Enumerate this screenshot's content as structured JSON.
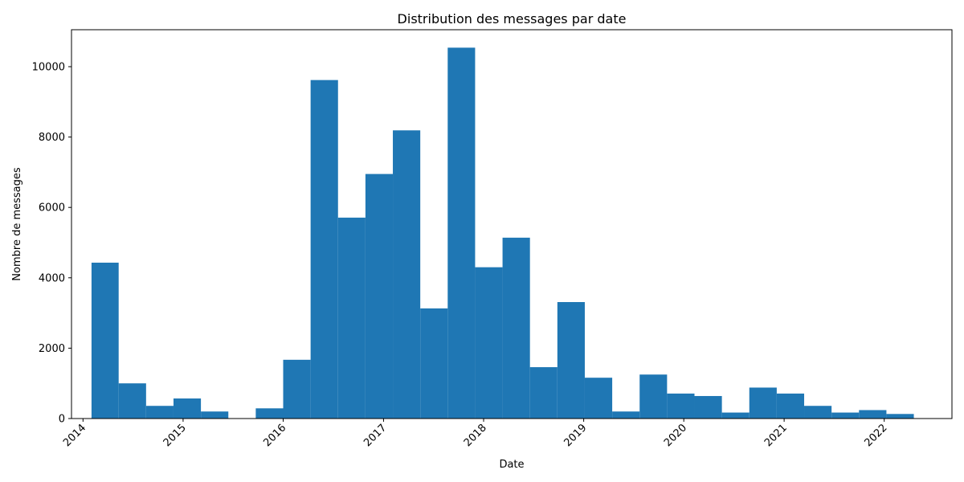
{
  "chart_data": {
    "type": "bar",
    "title": "Distribution des messages par date",
    "xlabel": "Date",
    "ylabel": "Nombre de messages",
    "x_ticks": [
      "2014",
      "2015",
      "2016",
      "2017",
      "2018",
      "2019",
      "2020",
      "2021",
      "2022"
    ],
    "y_ticks": [
      0,
      2000,
      4000,
      6000,
      8000,
      10000
    ],
    "xlim": [
      "2013-11-20",
      "2022-09-05"
    ],
    "ylim": [
      0,
      11050
    ],
    "bar_color": "#1f77b4",
    "bins": [
      {
        "start": "2014-02-01",
        "end": "2014-05-11",
        "value": 4430
      },
      {
        "start": "2014-05-11",
        "end": "2014-08-19",
        "value": 1000
      },
      {
        "start": "2014-08-19",
        "end": "2014-11-27",
        "value": 360
      },
      {
        "start": "2014-11-27",
        "end": "2015-03-07",
        "value": 570
      },
      {
        "start": "2015-03-07",
        "end": "2015-06-15",
        "value": 200
      },
      {
        "start": "2015-06-15",
        "end": "2015-09-23",
        "value": 0
      },
      {
        "start": "2015-09-23",
        "end": "2016-01-01",
        "value": 290
      },
      {
        "start": "2016-01-01",
        "end": "2016-04-10",
        "value": 1670
      },
      {
        "start": "2016-04-10",
        "end": "2016-07-19",
        "value": 9620
      },
      {
        "start": "2016-07-19",
        "end": "2016-10-27",
        "value": 5710
      },
      {
        "start": "2016-10-27",
        "end": "2017-02-04",
        "value": 6950
      },
      {
        "start": "2017-02-04",
        "end": "2017-05-15",
        "value": 8190
      },
      {
        "start": "2017-05-15",
        "end": "2017-08-23",
        "value": 3130
      },
      {
        "start": "2017-08-23",
        "end": "2017-12-01",
        "value": 10540
      },
      {
        "start": "2017-12-01",
        "end": "2018-03-11",
        "value": 4300
      },
      {
        "start": "2018-03-11",
        "end": "2018-06-19",
        "value": 5140
      },
      {
        "start": "2018-06-19",
        "end": "2018-09-27",
        "value": 1460
      },
      {
        "start": "2018-09-27",
        "end": "2019-01-05",
        "value": 3310
      },
      {
        "start": "2019-01-05",
        "end": "2019-04-15",
        "value": 1160
      },
      {
        "start": "2019-04-15",
        "end": "2019-07-24",
        "value": 200
      },
      {
        "start": "2019-07-24",
        "end": "2019-11-01",
        "value": 1250
      },
      {
        "start": "2019-11-01",
        "end": "2020-02-09",
        "value": 710
      },
      {
        "start": "2020-02-09",
        "end": "2020-05-19",
        "value": 640
      },
      {
        "start": "2020-05-19",
        "end": "2020-08-27",
        "value": 170
      },
      {
        "start": "2020-08-27",
        "end": "2020-12-05",
        "value": 880
      },
      {
        "start": "2020-12-05",
        "end": "2021-03-15",
        "value": 710
      },
      {
        "start": "2021-03-15",
        "end": "2021-06-23",
        "value": 360
      },
      {
        "start": "2021-06-23",
        "end": "2021-10-01",
        "value": 170
      },
      {
        "start": "2021-10-01",
        "end": "2022-01-09",
        "value": 240
      },
      {
        "start": "2022-01-09",
        "end": "2022-04-19",
        "value": 130
      }
    ]
  }
}
